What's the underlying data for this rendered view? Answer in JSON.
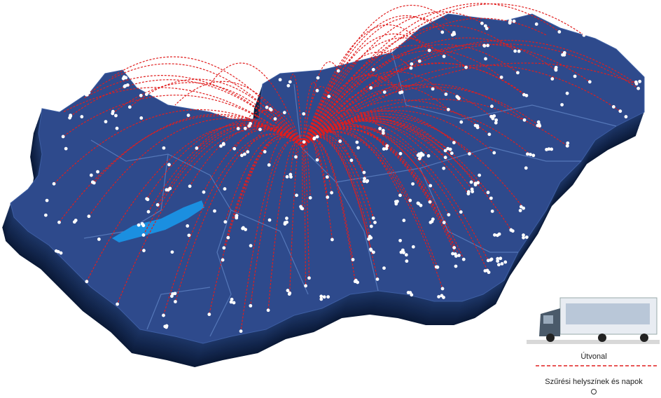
{
  "legend": {
    "route": "Útvonal",
    "locations": "Szűrési helyszínek és napok"
  }
}
